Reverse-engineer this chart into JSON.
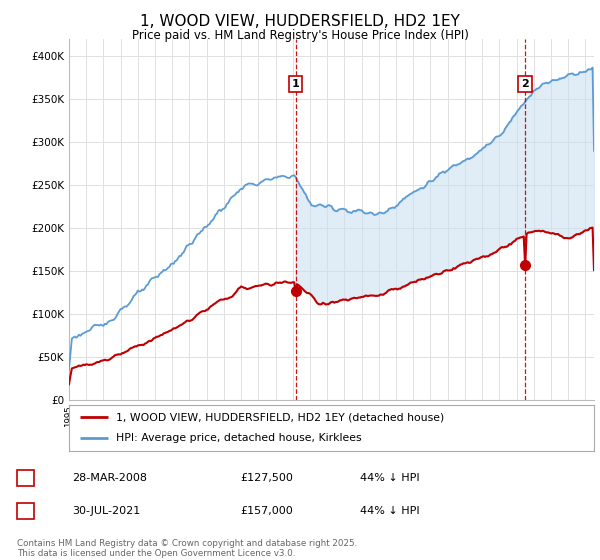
{
  "title": "1, WOOD VIEW, HUDDERSFIELD, HD2 1EY",
  "subtitle": "Price paid vs. HM Land Registry's House Price Index (HPI)",
  "ylim": [
    0,
    420000
  ],
  "yticks": [
    0,
    50000,
    100000,
    150000,
    200000,
    250000,
    300000,
    350000,
    400000
  ],
  "ytick_labels": [
    "£0",
    "£50K",
    "£100K",
    "£150K",
    "£200K",
    "£250K",
    "£300K",
    "£350K",
    "£400K"
  ],
  "hpi_color": "#5b9bd5",
  "hpi_fill_color": "#cce0f0",
  "price_color": "#c00000",
  "vline_color": "#c00000",
  "legend_label_red": "1, WOOD VIEW, HUDDERSFIELD, HD2 1EY (detached house)",
  "legend_label_blue": "HPI: Average price, detached house, Kirklees",
  "sale1_date": "28-MAR-2008",
  "sale1_price": "£127,500",
  "sale1_hpi": "44% ↓ HPI",
  "sale2_date": "30-JUL-2021",
  "sale2_price": "£157,000",
  "sale2_hpi": "44% ↓ HPI",
  "footer": "Contains HM Land Registry data © Crown copyright and database right 2025.\nThis data is licensed under the Open Government Licence v3.0.",
  "bg_color": "#ffffff",
  "grid_color": "#e0e0e0"
}
